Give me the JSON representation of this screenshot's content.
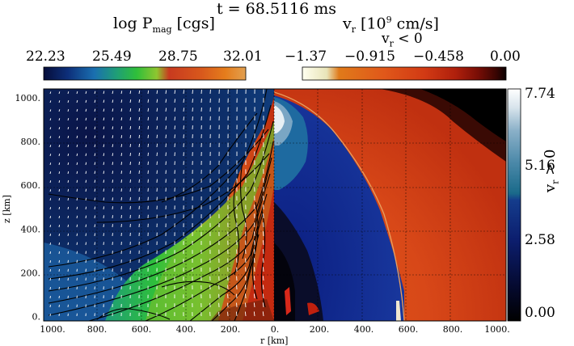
{
  "header": {
    "time_label": "t = 68.5116 ms"
  },
  "left_colorbar": {
    "title_main": "log P",
    "title_sub": "mag",
    "title_unit": " [cgs]",
    "ticks": [
      "22.23",
      "25.49",
      "28.75",
      "32.01"
    ],
    "colors": [
      "#060d3a",
      "#0d2f7a",
      "#1a6fb0",
      "#1f9e77",
      "#2fbf3a",
      "#8fc630",
      "#c83a1f",
      "#d8581c",
      "#e57d1c",
      "#e2a050"
    ]
  },
  "top_right_colorbar": {
    "title_main": "v",
    "title_sub_r": "r",
    "title_unit": " [10",
    "title_sup": "9",
    "title_tail": " cm/s]",
    "subtitle_main": "v",
    "subtitle_sub": "r",
    "subtitle_tail": " < 0",
    "ticks": [
      "−1.37",
      "−0.915",
      "−0.458",
      "0.00"
    ],
    "colors": [
      "#fffff0",
      "#e8e4b8",
      "#e07a1a",
      "#e0581a",
      "#d23a14",
      "#b0200c",
      "#7a0e06",
      "#3a0502",
      "#0a0000"
    ]
  },
  "right_colorbar": {
    "label_main": "v",
    "label_sub": "r",
    "label_tail": " > 0",
    "ticks": [
      "7.74",
      "5.16",
      "2.58",
      "0.00"
    ],
    "colors": [
      "#000000",
      "#050a30",
      "#0c1e6e",
      "#143c8c",
      "#1a6a8a",
      "#4a88a8",
      "#8ab0c8",
      "#d8e4ec",
      "#ffffff"
    ]
  },
  "chart_data": {
    "type": "heatmap",
    "title": "t = 68.5116 ms",
    "xlabel": "r [km]",
    "ylabel": "z [km]",
    "x_ticks": [
      "1000.",
      "800.",
      "600.",
      "400.",
      "200.",
      "0.",
      "200.",
      "400.",
      "600.",
      "800.",
      "1000."
    ],
    "y_ticks": [
      "0.",
      "200.",
      "400.",
      "600.",
      "800.",
      "1000."
    ],
    "xlim": [
      -1040,
      1040
    ],
    "ylim": [
      -20,
      1040
    ],
    "grid": true,
    "left_panel": {
      "quantity": "log P_mag",
      "range": [
        22.23,
        32.01
      ],
      "overlays": [
        "magnetic field lines",
        "velocity arrows"
      ]
    },
    "right_panel": {
      "quantity": "v_r",
      "range_negative": [
        -1.37,
        0.0
      ],
      "range_positive": [
        0.0,
        7.74
      ]
    }
  }
}
